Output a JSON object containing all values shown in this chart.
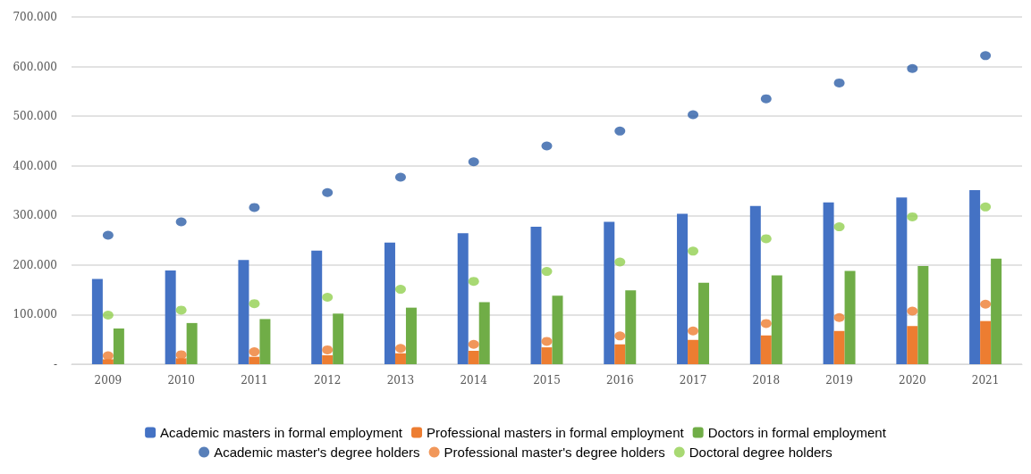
{
  "chart_data": {
    "type": "bar",
    "categories": [
      "2009",
      "2010",
      "2011",
      "2012",
      "2013",
      "2014",
      "2015",
      "2016",
      "2017",
      "2018",
      "2019",
      "2020",
      "2021"
    ],
    "series": [
      {
        "name": "Academic masters in formal employment",
        "color": "#4472c4",
        "values": [
          172000,
          189000,
          210000,
          229000,
          245000,
          264000,
          277000,
          287000,
          303000,
          319000,
          326000,
          336000,
          351000
        ]
      },
      {
        "name": "Professional masters in formal employment",
        "color": "#ed7d31",
        "values": [
          10000,
          12000,
          15000,
          18000,
          22000,
          27000,
          34000,
          40000,
          49000,
          58000,
          67000,
          77000,
          87000
        ]
      },
      {
        "name": "Doctors in formal employment",
        "color": "#70ad47",
        "values": [
          72000,
          83000,
          91000,
          102000,
          114000,
          125000,
          138000,
          149000,
          164000,
          179000,
          188000,
          198000,
          213000
        ]
      },
      {
        "name": "Academic master's degree holders",
        "type": "scatter",
        "color": "#2e5fa8",
        "values": [
          260000,
          287000,
          316000,
          346000,
          377000,
          408000,
          440000,
          470000,
          503000,
          535000,
          567000,
          596000,
          622000
        ]
      },
      {
        "name": "Professional master's degree holders",
        "type": "scatter",
        "color": "#ed7d31",
        "values": [
          17000,
          19000,
          25000,
          29000,
          32000,
          40000,
          46000,
          57000,
          67000,
          82000,
          94000,
          107000,
          121000
        ]
      },
      {
        "name": "Doctoral degree holders",
        "type": "scatter",
        "color": "#92d050",
        "values": [
          99000,
          109000,
          122000,
          135000,
          151000,
          167000,
          187000,
          206000,
          228000,
          253000,
          277000,
          297000,
          317000
        ]
      }
    ],
    "ylim": [
      0,
      700000
    ],
    "yticks": [
      {
        "value": 0,
        "label": "-"
      },
      {
        "value": 100000,
        "label": "100.000"
      },
      {
        "value": 200000,
        "label": "200.000"
      },
      {
        "value": 300000,
        "label": "300.000"
      },
      {
        "value": 400000,
        "label": "400.000"
      },
      {
        "value": 500000,
        "label": "500.000"
      },
      {
        "value": 600000,
        "label": "600.000"
      },
      {
        "value": 700000,
        "label": "700.000"
      }
    ],
    "grid": "y",
    "legend": "bottom",
    "marker": "circle"
  }
}
